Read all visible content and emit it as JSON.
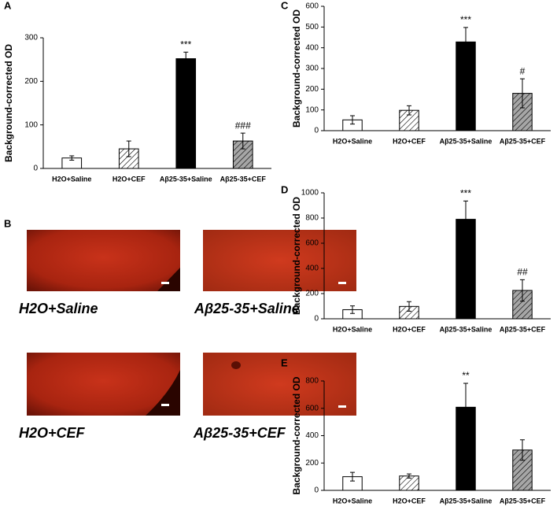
{
  "chart_data": [
    {
      "type": "bar",
      "panel": "A",
      "y_label": "Background-corrected OD",
      "categories": [
        "H2O+Saline",
        "H2O+CEF",
        "Aβ25-35+Saline",
        "Aβ25-35+CEF"
      ],
      "values": [
        24,
        45,
        252,
        63
      ],
      "errors": [
        5,
        18,
        15,
        18
      ],
      "annotations": [
        null,
        null,
        "***",
        "###"
      ],
      "colors": [
        "#ffffff",
        "#ffffff",
        "#000000",
        "#a6a6a6"
      ],
      "hatched": [
        false,
        true,
        false,
        true
      ],
      "ylim": [
        0,
        300
      ],
      "yticks": [
        0,
        100,
        200,
        300
      ]
    },
    {
      "type": "bar",
      "panel": "C",
      "y_label": "Background-corrected OD",
      "categories": [
        "H2O+Saline",
        "H2O+CEF",
        "Aβ25-35+Saline",
        "Aβ25-35+CEF"
      ],
      "values": [
        52,
        98,
        428,
        180
      ],
      "errors": [
        20,
        22,
        70,
        70
      ],
      "annotations": [
        null,
        null,
        "***",
        "#"
      ],
      "colors": [
        "#ffffff",
        "#ffffff",
        "#000000",
        "#a6a6a6"
      ],
      "hatched": [
        false,
        true,
        false,
        true
      ],
      "ylim": [
        0,
        600
      ],
      "yticks": [
        0,
        100,
        200,
        300,
        400,
        500,
        600
      ]
    },
    {
      "type": "bar",
      "panel": "D",
      "y_label": "Background-corrected OD",
      "categories": [
        "H2O+Saline",
        "H2O+CEF",
        "Aβ25-35+Saline",
        "Aβ25-35+CEF"
      ],
      "values": [
        72,
        98,
        790,
        225
      ],
      "errors": [
        30,
        38,
        145,
        85
      ],
      "annotations": [
        null,
        null,
        "***",
        "##"
      ],
      "colors": [
        "#ffffff",
        "#ffffff",
        "#000000",
        "#a6a6a6"
      ],
      "hatched": [
        false,
        true,
        false,
        true
      ],
      "ylim": [
        0,
        1000
      ],
      "yticks": [
        0,
        200,
        400,
        600,
        800,
        1000
      ]
    },
    {
      "type": "bar",
      "panel": "E",
      "y_label": "Background-corrected OD",
      "categories": [
        "H2O+Saline",
        "H2O+CEF",
        "Aβ25-35+Saline",
        "Aβ25-35+CEF"
      ],
      "values": [
        100,
        105,
        608,
        295
      ],
      "errors": [
        32,
        15,
        175,
        75
      ],
      "annotations": [
        null,
        null,
        "**",
        null
      ],
      "colors": [
        "#ffffff",
        "#ffffff",
        "#000000",
        "#a6a6a6"
      ],
      "hatched": [
        false,
        true,
        false,
        true
      ],
      "ylim": [
        0,
        800
      ],
      "yticks": [
        0,
        200,
        400,
        600,
        800
      ]
    }
  ],
  "image_panel": {
    "panel": "B",
    "images": [
      "H2O+Saline",
      "Aβ25-35+Saline",
      "H2O+CEF",
      "Aβ25-35+CEF"
    ]
  }
}
